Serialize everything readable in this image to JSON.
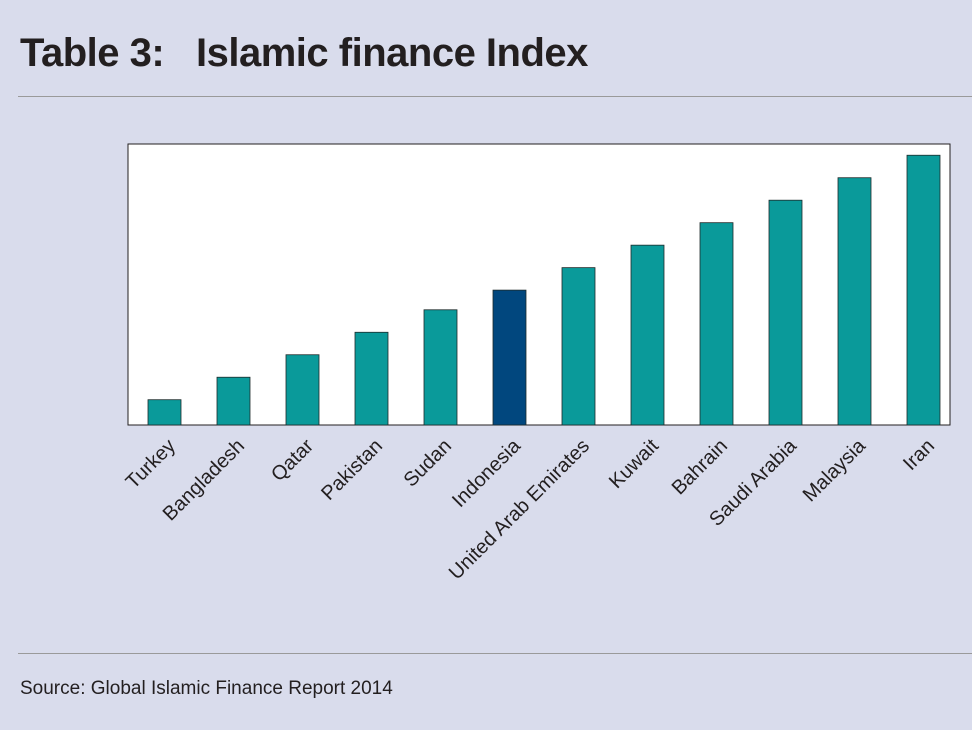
{
  "header": {
    "title": "Table 3:   Islamic finance Index"
  },
  "footer": {
    "source": "Source: Global Islamic Finance Report 2014"
  },
  "colors": {
    "bar": "#0a9a9a",
    "highlight": "#01477e",
    "plot_background": "#ffffff",
    "page_background": "#d9dcec"
  },
  "chart_data": {
    "type": "bar",
    "categories": [
      "Turkey",
      "Bangladesh",
      "Qatar",
      "Pakistan",
      "Sudan",
      "Indonesia",
      "United Arab Emirates",
      "Kuwait",
      "Bahrain",
      "Saudi Arabia",
      "Malaysia",
      "Iran"
    ],
    "values": [
      9,
      17,
      25,
      33,
      41,
      48,
      56,
      64,
      72,
      80,
      88,
      96
    ],
    "highlight": "Indonesia",
    "ylim": [
      0,
      100
    ],
    "title": "",
    "xlabel": "",
    "ylabel": "",
    "grid": false,
    "legend": "none",
    "y_ticks_visible": false
  }
}
